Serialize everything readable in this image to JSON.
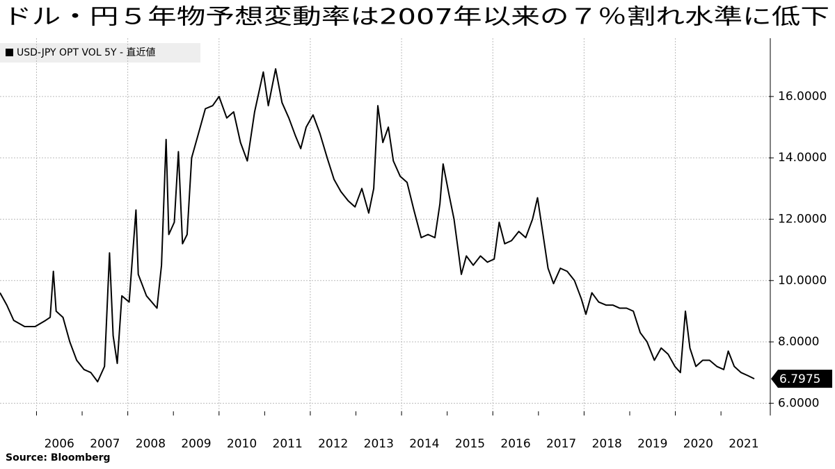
{
  "chart_data": {
    "type": "line",
    "title": "ドル・円５年物予想変動率は2007年以来の７％割れ水準に低下",
    "source": "Source:  Bloomberg",
    "xlim": [
      2005.2,
      2022.05
    ],
    "ylim": [
      5.6,
      17.9
    ],
    "xticks": [
      2006,
      2007,
      2008,
      2009,
      2010,
      2011,
      2012,
      2013,
      2014,
      2015,
      2016,
      2017,
      2018,
      2019,
      2020,
      2021
    ],
    "yticks": [
      {
        "value": 6,
        "label": "6.0000"
      },
      {
        "value": 8,
        "label": "8.0000"
      },
      {
        "value": 10,
        "label": "10.0000"
      },
      {
        "value": 12,
        "label": "12.0000"
      },
      {
        "value": 14,
        "label": "14.0000"
      },
      {
        "value": 16,
        "label": "16.0000"
      }
    ],
    "grid": true,
    "legend": "upper left",
    "x": [
      2005.2,
      2005.35,
      2005.5,
      2005.74,
      2005.97,
      2006.2,
      2006.3,
      2006.37,
      2006.43,
      2006.58,
      2006.73,
      2006.88,
      2007.04,
      2007.19,
      2007.34,
      2007.49,
      2007.6,
      2007.68,
      2007.77,
      2007.87,
      2008.03,
      2008.18,
      2008.23,
      2008.41,
      2008.64,
      2008.74,
      2008.84,
      2008.9,
      2009.02,
      2009.11,
      2009.2,
      2009.3,
      2009.4,
      2009.55,
      2009.7,
      2009.86,
      2010.0,
      2010.17,
      2010.32,
      2010.47,
      2010.62,
      2010.78,
      2010.97,
      2011.08,
      2011.24,
      2011.38,
      2011.53,
      2011.68,
      2011.79,
      2011.91,
      2012.06,
      2012.21,
      2012.37,
      2012.52,
      2012.67,
      2012.83,
      2012.98,
      2013.13,
      2013.28,
      2013.39,
      2013.48,
      2013.59,
      2013.71,
      2013.82,
      2013.97,
      2014.12,
      2014.27,
      2014.43,
      2014.58,
      2014.73,
      2014.84,
      2014.91,
      2015.04,
      2015.15,
      2015.24,
      2015.31,
      2015.42,
      2015.57,
      2015.73,
      2015.88,
      2016.03,
      2016.14,
      2016.26,
      2016.41,
      2016.57,
      2016.72,
      2016.87,
      2016.98,
      2017.1,
      2017.21,
      2017.33,
      2017.48,
      2017.63,
      2017.79,
      2017.94,
      2018.04,
      2018.17,
      2018.32,
      2018.48,
      2018.63,
      2018.78,
      2018.93,
      2019.08,
      2019.23,
      2019.38,
      2019.54,
      2019.69,
      2019.84,
      2019.99,
      2020.11,
      2020.22,
      2020.32,
      2020.45,
      2020.6,
      2020.75,
      2020.91,
      2021.06,
      2021.16,
      2021.29,
      2021.44,
      2021.59,
      2021.73
    ],
    "series": [
      {
        "name": "USD-JPY OPT VOL 5Y - 直近値",
        "color": "#000000",
        "values": [
          9.6,
          9.2,
          8.7,
          8.5,
          8.5,
          8.7,
          8.8,
          10.3,
          9.0,
          8.8,
          8.0,
          7.4,
          7.1,
          7.0,
          6.7,
          7.2,
          10.9,
          8.2,
          7.3,
          9.5,
          9.3,
          12.3,
          10.2,
          9.5,
          9.1,
          10.5,
          14.6,
          11.5,
          11.9,
          14.2,
          11.2,
          11.5,
          14.0,
          14.8,
          15.6,
          15.7,
          16.0,
          15.3,
          15.5,
          14.5,
          13.9,
          15.5,
          16.8,
          15.7,
          16.9,
          15.8,
          15.3,
          14.7,
          14.3,
          15.0,
          15.4,
          14.8,
          14.0,
          13.3,
          12.9,
          12.6,
          12.4,
          13.0,
          12.2,
          13.0,
          15.7,
          14.5,
          15.0,
          13.9,
          13.4,
          13.2,
          12.3,
          11.4,
          11.5,
          11.4,
          12.5,
          13.8,
          12.8,
          12.0,
          11.0,
          10.2,
          10.8,
          10.5,
          10.8,
          10.6,
          10.7,
          11.9,
          11.2,
          11.3,
          11.6,
          11.4,
          12.0,
          12.7,
          11.5,
          10.4,
          9.9,
          10.4,
          10.3,
          10.0,
          9.4,
          8.9,
          9.6,
          9.3,
          9.2,
          9.2,
          9.1,
          9.1,
          9.0,
          8.3,
          8.0,
          7.4,
          7.8,
          7.6,
          7.2,
          7.0,
          9.0,
          7.8,
          7.2,
          7.4,
          7.4,
          7.2,
          7.1,
          7.7,
          7.2,
          7.0,
          6.9,
          6.7975
        ]
      }
    ]
  }
}
